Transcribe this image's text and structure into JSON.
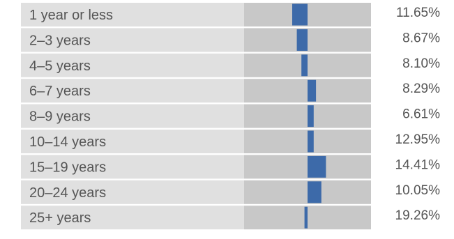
{
  "chart_data": {
    "type": "bar",
    "categories": [
      "1 year or less",
      "2–3 years",
      "4–5 years",
      "6–7 years",
      "8–9 years",
      "10–14 years",
      "15–19 years",
      "20–24 years",
      "25+ years"
    ],
    "series": [
      {
        "values": [
          -1.0,
          -0.7,
          -0.4,
          0.55,
          0.4,
          0.4,
          1.2,
          0.9,
          -0.2
        ]
      }
    ],
    "percent_labels": [
      "11.65%",
      "8.67%",
      "8.10%",
      "8.29%",
      "6.61%",
      "12.95%",
      "14.41%",
      "10.05%",
      "19.26%"
    ],
    "diverging_axis": "centered",
    "colors": {
      "row_bg": "#e0e0e0",
      "bar_track": "#c8c8c8",
      "bar_fill": "#3d6aa9",
      "text": "#555555"
    }
  }
}
